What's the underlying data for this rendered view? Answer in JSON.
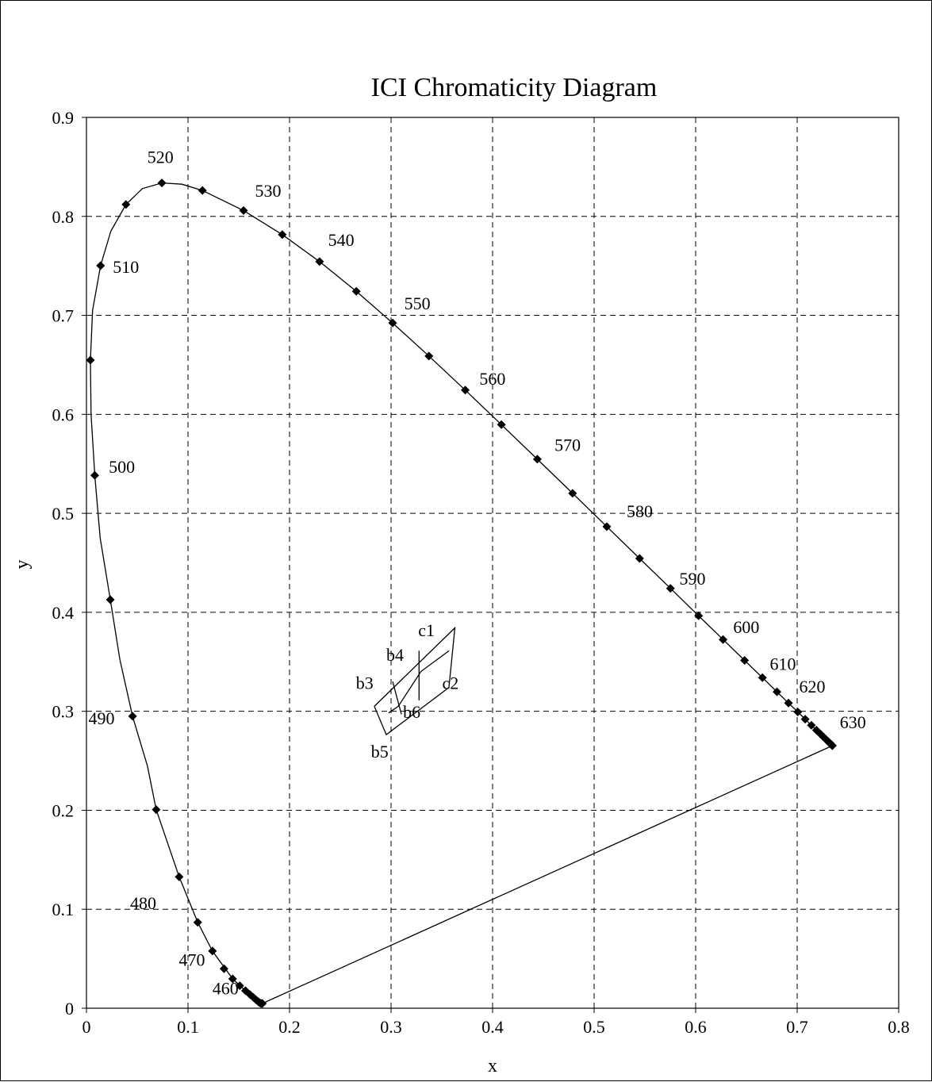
{
  "chart_data": {
    "type": "scatter",
    "title": "ICI Chromaticity Diagram",
    "xlabel": "x",
    "ylabel": "y",
    "xlim": [
      0,
      0.8
    ],
    "ylim": [
      0,
      0.9
    ],
    "grid": true,
    "x_ticks": [
      "0",
      "0.1",
      "0.2",
      "0.3",
      "0.4",
      "0.5",
      "0.6",
      "0.7",
      "0.8"
    ],
    "y_ticks": [
      "0",
      "0.1",
      "0.2",
      "0.3",
      "0.4",
      "0.5",
      "0.6",
      "0.7",
      "0.8",
      "0.9"
    ],
    "spectral_locus_markers": [
      [
        0.1733,
        0.0048
      ],
      [
        0.1726,
        0.0048
      ],
      [
        0.1714,
        0.0051
      ],
      [
        0.1703,
        0.0058
      ],
      [
        0.1689,
        0.0069
      ],
      [
        0.1669,
        0.0086
      ],
      [
        0.1644,
        0.0109
      ],
      [
        0.1611,
        0.0138
      ],
      [
        0.1566,
        0.0177
      ],
      [
        0.151,
        0.0227
      ],
      [
        0.144,
        0.0297
      ],
      [
        0.1355,
        0.0399
      ],
      [
        0.1241,
        0.0578
      ],
      [
        0.1096,
        0.0868
      ],
      [
        0.0913,
        0.1327
      ],
      [
        0.0687,
        0.2007
      ],
      [
        0.0454,
        0.295
      ],
      [
        0.0235,
        0.4127
      ],
      [
        0.0082,
        0.5384
      ],
      [
        0.0039,
        0.6548
      ],
      [
        0.0139,
        0.7502
      ],
      [
        0.0389,
        0.812
      ],
      [
        0.0743,
        0.8338
      ],
      [
        0.1142,
        0.8262
      ],
      [
        0.1547,
        0.8059
      ],
      [
        0.1929,
        0.7816
      ],
      [
        0.2296,
        0.7543
      ],
      [
        0.2658,
        0.7243
      ],
      [
        0.3016,
        0.6923
      ],
      [
        0.3373,
        0.6589
      ],
      [
        0.3731,
        0.6245
      ],
      [
        0.4087,
        0.5896
      ],
      [
        0.4441,
        0.5547
      ],
      [
        0.4788,
        0.5202
      ],
      [
        0.5125,
        0.4866
      ],
      [
        0.5448,
        0.4544
      ],
      [
        0.5752,
        0.4242
      ],
      [
        0.6029,
        0.3965
      ],
      [
        0.627,
        0.3725
      ],
      [
        0.6482,
        0.3514
      ],
      [
        0.6658,
        0.334
      ],
      [
        0.6801,
        0.3197
      ],
      [
        0.6915,
        0.3083
      ],
      [
        0.7006,
        0.2993
      ],
      [
        0.7079,
        0.292
      ],
      [
        0.714,
        0.2859
      ],
      [
        0.719,
        0.2809
      ],
      [
        0.723,
        0.277
      ],
      [
        0.726,
        0.274
      ],
      [
        0.7283,
        0.2717
      ],
      [
        0.73,
        0.27
      ],
      [
        0.7311,
        0.2689
      ],
      [
        0.732,
        0.268
      ],
      [
        0.7327,
        0.2673
      ],
      [
        0.7334,
        0.2666
      ],
      [
        0.734,
        0.266
      ],
      [
        0.7344,
        0.2656
      ],
      [
        0.7346,
        0.2654
      ],
      [
        0.7347,
        0.2653
      ]
    ],
    "spectral_locus_curve": [
      [
        0.1733,
        0.0048
      ],
      [
        0.1703,
        0.0058
      ],
      [
        0.1644,
        0.0109
      ],
      [
        0.1566,
        0.0177
      ],
      [
        0.144,
        0.0297
      ],
      [
        0.1241,
        0.0578
      ],
      [
        0.1096,
        0.0868
      ],
      [
        0.0913,
        0.1327
      ],
      [
        0.0687,
        0.2007
      ],
      [
        0.06,
        0.245
      ],
      [
        0.0454,
        0.295
      ],
      [
        0.033,
        0.352
      ],
      [
        0.0235,
        0.4127
      ],
      [
        0.0135,
        0.475
      ],
      [
        0.0082,
        0.5384
      ],
      [
        0.0045,
        0.6
      ],
      [
        0.0039,
        0.6548
      ],
      [
        0.006,
        0.705
      ],
      [
        0.0139,
        0.7502
      ],
      [
        0.024,
        0.785
      ],
      [
        0.0389,
        0.812
      ],
      [
        0.055,
        0.828
      ],
      [
        0.0743,
        0.8338
      ],
      [
        0.094,
        0.8325
      ],
      [
        0.1142,
        0.8262
      ],
      [
        0.1547,
        0.8059
      ],
      [
        0.1929,
        0.7816
      ],
      [
        0.2296,
        0.7543
      ],
      [
        0.2658,
        0.7243
      ],
      [
        0.3016,
        0.6923
      ],
      [
        0.3373,
        0.6589
      ],
      [
        0.3731,
        0.6245
      ],
      [
        0.4087,
        0.5896
      ],
      [
        0.4441,
        0.5547
      ],
      [
        0.4788,
        0.5202
      ],
      [
        0.5125,
        0.4866
      ],
      [
        0.5448,
        0.4544
      ],
      [
        0.5752,
        0.4242
      ],
      [
        0.6029,
        0.3965
      ],
      [
        0.627,
        0.3725
      ],
      [
        0.6482,
        0.3514
      ],
      [
        0.6658,
        0.334
      ],
      [
        0.6801,
        0.3197
      ],
      [
        0.6915,
        0.3083
      ],
      [
        0.7006,
        0.2993
      ],
      [
        0.7079,
        0.292
      ],
      [
        0.714,
        0.2859
      ],
      [
        0.723,
        0.277
      ],
      [
        0.7347,
        0.2653
      ]
    ],
    "purple_line": [
      [
        0.7347,
        0.2653
      ],
      [
        0.1733,
        0.0048
      ]
    ],
    "wavelength_labels": [
      {
        "text": "460",
        "x": 0.124,
        "y": 0.014
      },
      {
        "text": "470",
        "x": 0.091,
        "y": 0.043
      },
      {
        "text": "480",
        "x": 0.043,
        "y": 0.1
      },
      {
        "text": "490",
        "x": 0.002,
        "y": 0.287
      },
      {
        "text": "500",
        "x": 0.022,
        "y": 0.541
      },
      {
        "text": "510",
        "x": 0.026,
        "y": 0.743
      },
      {
        "text": "520",
        "x": 0.06,
        "y": 0.854
      },
      {
        "text": "530",
        "x": 0.166,
        "y": 0.82
      },
      {
        "text": "540",
        "x": 0.238,
        "y": 0.77
      },
      {
        "text": "550",
        "x": 0.313,
        "y": 0.706
      },
      {
        "text": "560",
        "x": 0.387,
        "y": 0.63
      },
      {
        "text": "570",
        "x": 0.461,
        "y": 0.563
      },
      {
        "text": "580",
        "x": 0.532,
        "y": 0.496
      },
      {
        "text": "590",
        "x": 0.584,
        "y": 0.428
      },
      {
        "text": "600",
        "x": 0.637,
        "y": 0.379
      },
      {
        "text": "610",
        "x": 0.673,
        "y": 0.342
      },
      {
        "text": "620",
        "x": 0.702,
        "y": 0.319
      },
      {
        "text": "630",
        "x": 0.742,
        "y": 0.283
      }
    ],
    "sample_outline": [
      [
        0.2835,
        0.305
      ],
      [
        0.2953,
        0.2764
      ],
      [
        0.357,
        0.324
      ],
      [
        0.3629,
        0.3843
      ],
      [
        0.2835,
        0.305
      ]
    ],
    "sample_lines": [
      [
        [
          0.2976,
          0.2984
        ],
        [
          0.3071,
          0.305
        ],
        [
          0.3295,
          0.3403
        ],
        [
          0.3571,
          0.3611
        ]
      ],
      [
        [
          0.3016,
          0.3301
        ],
        [
          0.3102,
          0.2969
        ]
      ],
      [
        [
          0.3276,
          0.3611
        ],
        [
          0.3276,
          0.311
        ]
      ]
    ],
    "sample_labels": [
      {
        "text": "c1",
        "x": 0.3268,
        "y": 0.3759
      },
      {
        "text": "b4",
        "x": 0.2953,
        "y": 0.3511
      },
      {
        "text": "b3",
        "x": 0.2654,
        "y": 0.3224
      },
      {
        "text": "c2",
        "x": 0.3504,
        "y": 0.3224
      },
      {
        "text": "b6",
        "x": 0.3118,
        "y": 0.2934
      },
      {
        "text": "b5",
        "x": 0.2803,
        "y": 0.2534
      }
    ]
  }
}
